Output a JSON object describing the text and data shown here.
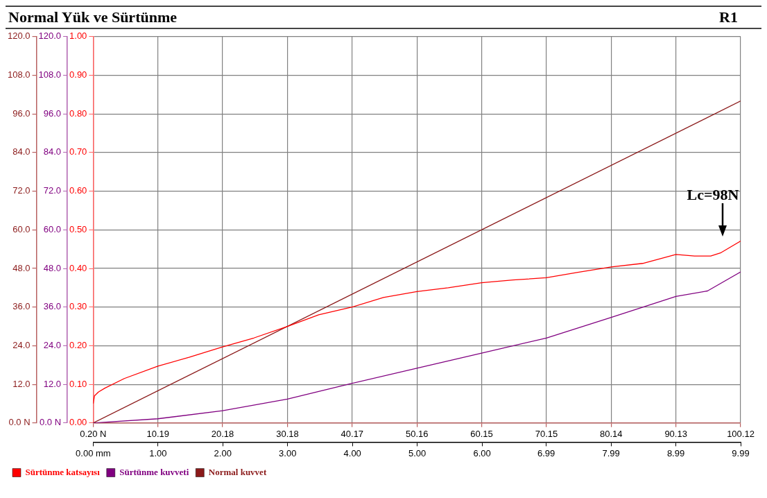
{
  "chart_data": {
    "type": "line",
    "title": "Normal Yük ve Sürtünme",
    "subtitle": "R1",
    "annotations": [
      "Lc=98N"
    ],
    "series": [
      {
        "name": "Sürtünme katsayısı",
        "color": "#ff0000",
        "axis": "y3",
        "x": [
          0.2,
          0.4,
          1,
          2,
          5,
          10.19,
          15,
          20.18,
          25,
          30.18,
          35,
          40.17,
          45,
          50.16,
          55,
          60.15,
          65,
          70.15,
          75,
          80.14,
          85,
          90.13,
          93,
          95.5,
          97,
          100.12
        ],
        "values": [
          0.05,
          0.07,
          0.08,
          0.09,
          0.115,
          0.147,
          0.17,
          0.197,
          0.22,
          0.25,
          0.28,
          0.3,
          0.325,
          0.34,
          0.35,
          0.363,
          0.37,
          0.376,
          0.39,
          0.404,
          0.413,
          0.436,
          0.432,
          0.432,
          0.44,
          0.471
        ]
      },
      {
        "name": "Sürtünme kuvveti",
        "color": "#800080",
        "axis": "y2",
        "x": [
          0.2,
          10.19,
          20.18,
          30.18,
          40.17,
          50.16,
          60.15,
          70.15,
          80.14,
          90.13,
          95,
          100.12
        ],
        "values": [
          0,
          1.3,
          3.8,
          7.4,
          12.3,
          17,
          21.7,
          26.4,
          32.8,
          39.3,
          41,
          46.9
        ]
      },
      {
        "name": "Normal kuvvet",
        "color": "#8b1a1a",
        "axis": "y",
        "x": [
          0.2,
          100.12
        ],
        "values": [
          0,
          100
        ]
      }
    ],
    "xlim": [
      0.2,
      100.12
    ],
    "xticks": [
      {
        "value": 0.2,
        "label": "0.20 N"
      },
      10.19,
      20.18,
      30.18,
      40.17,
      50.16,
      60.15,
      70.15,
      80.14,
      90.13,
      100.12
    ],
    "x2lim": [
      0,
      9.99
    ],
    "x2ticks": [
      {
        "value": 0,
        "label": "0.00 mm"
      },
      {
        "value": 1,
        "label": "1.00"
      },
      {
        "value": 2,
        "label": "2.00"
      },
      {
        "value": 3,
        "label": "3.00"
      },
      {
        "value": 4,
        "label": "4.00"
      },
      {
        "value": 5,
        "label": "5.00"
      },
      {
        "value": 6,
        "label": "6.00"
      },
      6.99,
      7.99,
      8.99,
      9.99
    ],
    "ylim": [
      0,
      120
    ],
    "yticks": [
      {
        "value": 0,
        "label": "0.0 N"
      },
      {
        "value": 12,
        "label": "12.0"
      },
      {
        "value": 24,
        "label": "24.0"
      },
      {
        "value": 36,
        "label": "36.0"
      },
      {
        "value": 48,
        "label": "48.0"
      },
      {
        "value": 60,
        "label": "60.0"
      },
      {
        "value": 72,
        "label": "72.0"
      },
      {
        "value": 84,
        "label": "84.0"
      },
      {
        "value": 96,
        "label": "96.0"
      },
      {
        "value": 108,
        "label": "108.0"
      },
      {
        "value": 120,
        "label": "120.0"
      }
    ],
    "y2lim": [
      0,
      120
    ],
    "y2ticks": [
      {
        "value": 0,
        "label": "0.0 N"
      },
      {
        "value": 12,
        "label": "12.0"
      },
      {
        "value": 24,
        "label": "24.0"
      },
      {
        "value": 36,
        "label": "36.0"
      },
      {
        "value": 48,
        "label": "48.0"
      },
      {
        "value": 60,
        "label": "60.0"
      },
      {
        "value": 72,
        "label": "72.0"
      },
      {
        "value": 84,
        "label": "84.0"
      },
      {
        "value": 96,
        "label": "96.0"
      },
      {
        "value": 108,
        "label": "108.0"
      },
      {
        "value": 120,
        "label": "120.0"
      }
    ],
    "y3lim": [
      0,
      1
    ],
    "y3ticks": [
      {
        "value": 0,
        "label": "0.00"
      },
      {
        "value": 0.1,
        "label": "0.10"
      },
      {
        "value": 0.2,
        "label": "0.20"
      },
      {
        "value": 0.3,
        "label": "0.30"
      },
      {
        "value": 0.4,
        "label": "0.40"
      },
      {
        "value": 0.5,
        "label": "0.50"
      },
      {
        "value": 0.6,
        "label": "0.60"
      },
      {
        "value": 0.7,
        "label": "0.70"
      },
      {
        "value": 0.8,
        "label": "0.80"
      },
      {
        "value": 0.9,
        "label": "0.90"
      },
      {
        "value": 1,
        "label": "1.00"
      }
    ],
    "grid": true,
    "legend": "bottom left",
    "marker": "none",
    "line_style": "solid"
  }
}
